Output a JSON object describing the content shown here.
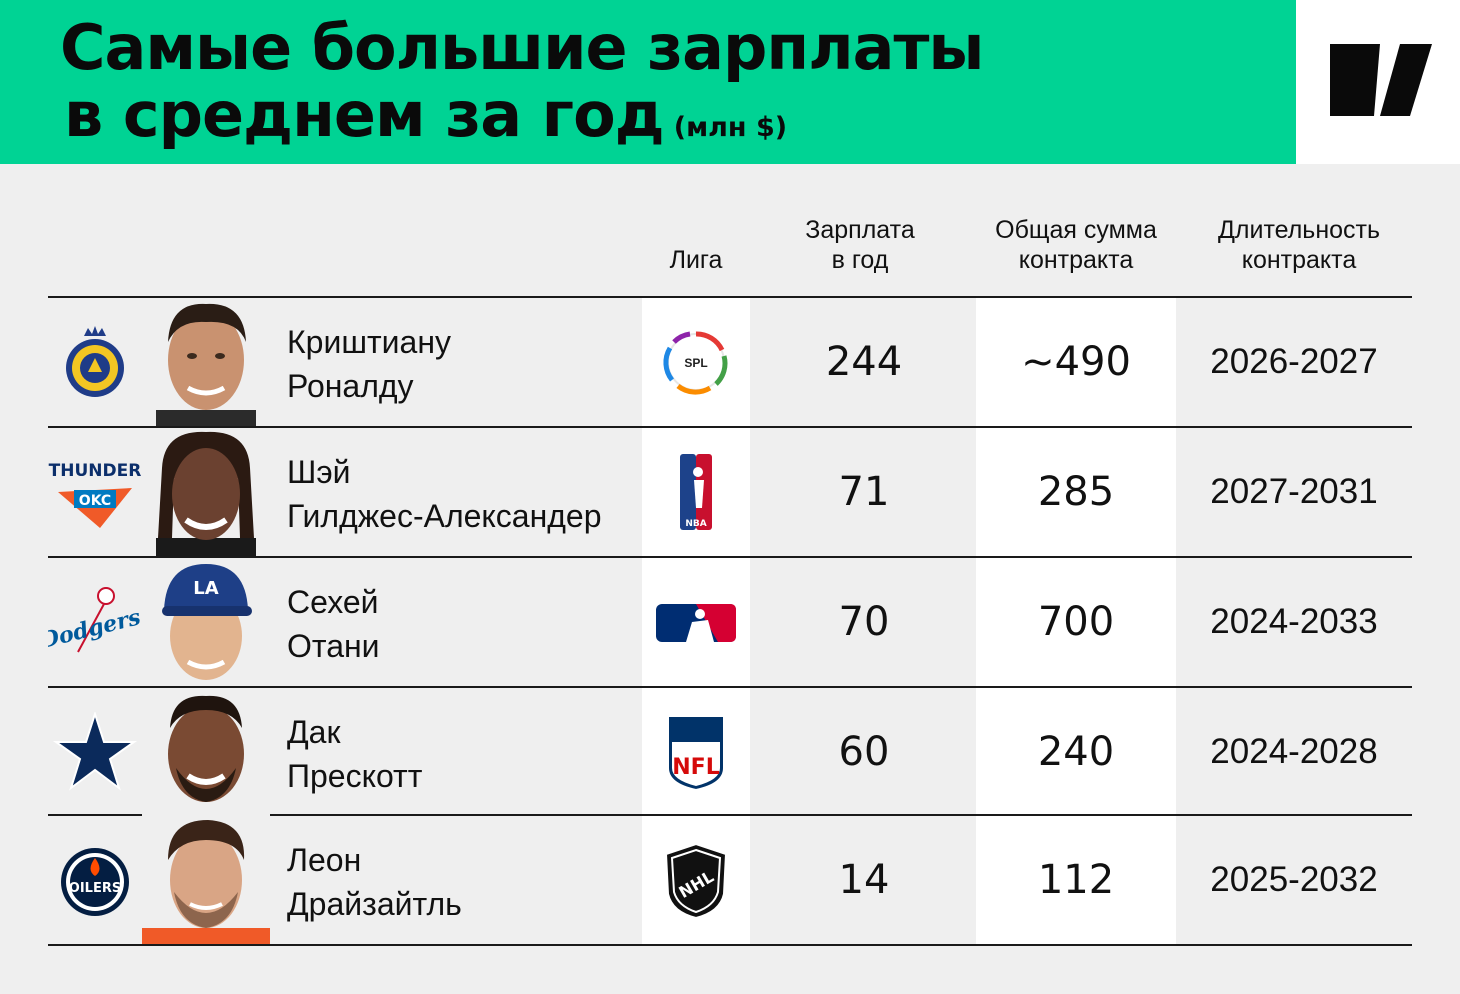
{
  "header": {
    "title_line1": "Самые большие зарплаты",
    "title_line2": "в среднем за год",
    "unit": "(млн $)"
  },
  "columns": {
    "league": "Лига",
    "salary_1": "Зарплата",
    "salary_2": "в год",
    "total_1": "Общая сумма",
    "total_2": "контракта",
    "duration_1": "Длительность",
    "duration_2": "контракта"
  },
  "rows": [
    {
      "name_1": "Криштиану",
      "name_2": "Роналду",
      "salary": "244",
      "total": "~490",
      "duration": "2026-2027",
      "club_icon": "al-nassr-icon",
      "league_icon": "spl-icon"
    },
    {
      "name_1": "Шэй",
      "name_2": "Гилджес-Александер",
      "salary": "71",
      "total": "285",
      "duration": "2027-2031",
      "club_icon": "thunder-okc-icon",
      "league_icon": "nba-icon"
    },
    {
      "name_1": "Сехей",
      "name_2": "Отани",
      "salary": "70",
      "total": "700",
      "duration": "2024-2033",
      "club_icon": "dodgers-icon",
      "league_icon": "mlb-icon"
    },
    {
      "name_1": "Дак",
      "name_2": "Прескотт",
      "salary": "60",
      "total": "240",
      "duration": "2024-2028",
      "club_icon": "cowboys-star-icon",
      "league_icon": "nfl-icon"
    },
    {
      "name_1": "Леон",
      "name_2": "Драйзайтль",
      "salary": "14",
      "total": "112",
      "duration": "2025-2032",
      "club_icon": "oilers-icon",
      "league_icon": "nhl-icon"
    }
  ],
  "logos": {
    "spl": "SPL",
    "nba": "NBA",
    "nfl": "NFL",
    "nhl": "NHL",
    "thunder": "THUNDER",
    "okc": "OKC",
    "dodgers": "Dodgers",
    "oilers": "OILERS",
    "la": "LA",
    "al_nassr": "AL NASSR"
  },
  "colors": {
    "header_bg": "#00d394",
    "page_bg": "#efefef",
    "white_col": "#ffffff",
    "text": "#111111"
  }
}
